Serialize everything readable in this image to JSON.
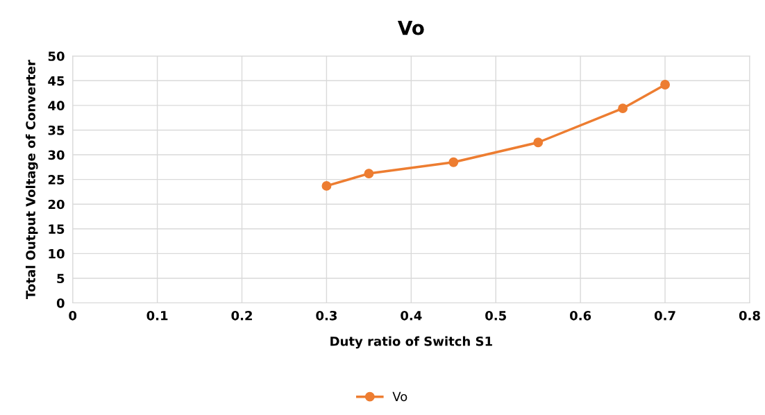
{
  "chart_data": {
    "type": "line",
    "title": "Vo",
    "xlabel": "Duty ratio of Switch S1",
    "ylabel": "Total Output Voltage of Converter",
    "x": [
      0.3,
      0.35,
      0.45,
      0.55,
      0.65,
      0.7
    ],
    "series": [
      {
        "name": "Vo",
        "color": "#ed7d31",
        "values": [
          23.7,
          26.2,
          28.5,
          32.5,
          39.4,
          44.2
        ]
      }
    ],
    "xlim": [
      0,
      0.8
    ],
    "xticks": [
      {
        "value": 0,
        "label": "0"
      },
      0.1,
      0.2,
      0.3,
      0.4,
      0.5,
      0.6,
      0.7,
      0.8
    ],
    "ylim": [
      0,
      50
    ],
    "yticks": [
      0,
      5,
      10,
      15,
      20,
      25,
      30,
      35,
      40,
      45,
      50
    ],
    "grid": true,
    "legend": "bottom",
    "marker": "circle",
    "line_style": "solid"
  }
}
